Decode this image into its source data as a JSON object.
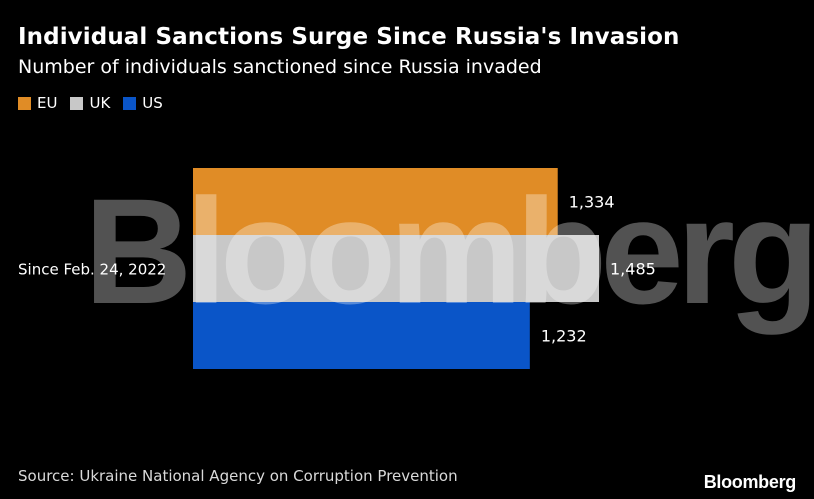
{
  "title": "Individual Sanctions Surge Since Russia's Invasion",
  "subtitle": "Number of individuals sanctioned since Russia invaded",
  "legend": [
    {
      "label": "EU",
      "color": "#e08c26"
    },
    {
      "label": "UK",
      "color": "#c8c8c8"
    },
    {
      "label": "US",
      "color": "#0a55c8"
    }
  ],
  "source": "Source: Ukraine National Agency on Corruption Prevention",
  "brand": "Bloomberg",
  "watermark": "Bloomberg",
  "chart_data": {
    "type": "bar",
    "orientation": "horizontal",
    "categories": [
      "Since Feb. 24, 2022"
    ],
    "series": [
      {
        "name": "EU",
        "values": [
          1334
        ],
        "labels": [
          "1,334"
        ],
        "color": "#e08c26"
      },
      {
        "name": "UK",
        "values": [
          1485
        ],
        "labels": [
          "1,485"
        ],
        "color": "#c8c8c8"
      },
      {
        "name": "US",
        "values": [
          1232
        ],
        "labels": [
          "1,232"
        ],
        "color": "#0a55c8"
      }
    ],
    "xlim": [
      0,
      1485
    ],
    "grid": false,
    "legend_position": "top-left"
  }
}
